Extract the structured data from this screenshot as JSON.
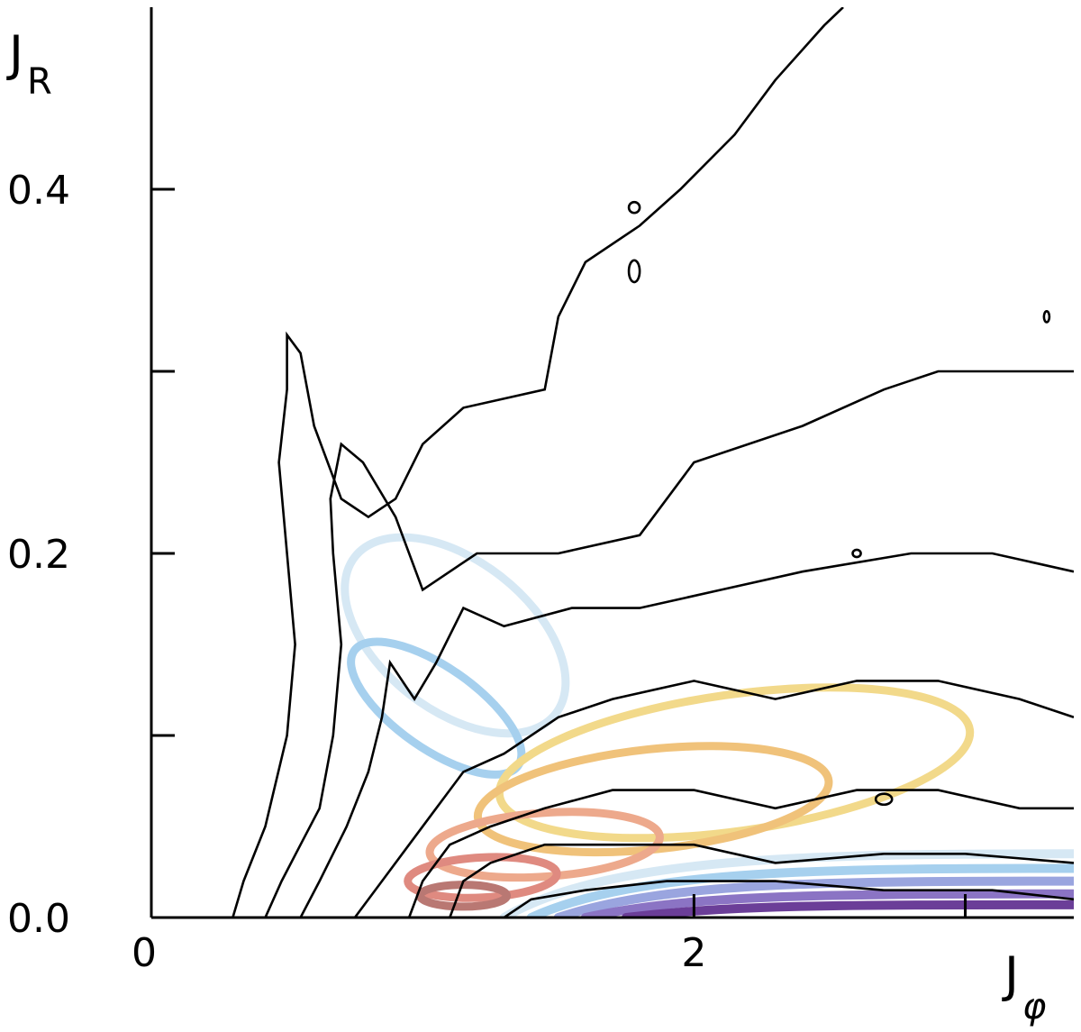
{
  "chart_data": {
    "type": "contour",
    "xlabel": "J",
    "xlabel_sub": "φ",
    "ylabel": "J",
    "ylabel_sub": "R",
    "xlim": [
      0,
      3.4
    ],
    "ylim": [
      0,
      0.5
    ],
    "x_ticks": [
      {
        "value": 0,
        "label": "0"
      },
      {
        "value": 2,
        "label": "2"
      },
      {
        "value": 3,
        "label": ""
      }
    ],
    "y_ticks": [
      {
        "value": 0.0,
        "label": "0.0"
      },
      {
        "value": 0.1,
        "label": ""
      },
      {
        "value": 0.2,
        "label": "0.2"
      },
      {
        "value": 0.3,
        "label": ""
      },
      {
        "value": 0.4,
        "label": "0.4"
      }
    ],
    "black_contours": [
      {
        "name": "contour-level-1",
        "points": [
          [
            0.3,
            0.0
          ],
          [
            0.34,
            0.02
          ],
          [
            0.42,
            0.05
          ],
          [
            0.5,
            0.1
          ],
          [
            0.53,
            0.15
          ],
          [
            0.5,
            0.2
          ],
          [
            0.47,
            0.25
          ],
          [
            0.5,
            0.29
          ],
          [
            0.5,
            0.32
          ],
          [
            0.55,
            0.31
          ],
          [
            0.6,
            0.27
          ],
          [
            0.7,
            0.23
          ],
          [
            0.8,
            0.22
          ],
          [
            0.9,
            0.23
          ],
          [
            1.0,
            0.26
          ],
          [
            1.15,
            0.28
          ],
          [
            1.45,
            0.29
          ],
          [
            1.5,
            0.33
          ],
          [
            1.6,
            0.36
          ],
          [
            1.8,
            0.38
          ],
          [
            1.95,
            0.4
          ],
          [
            2.15,
            0.43
          ],
          [
            2.3,
            0.46
          ],
          [
            2.48,
            0.49
          ],
          [
            2.55,
            0.5
          ]
        ]
      },
      {
        "name": "contour-level-2",
        "points": [
          [
            0.42,
            0.0
          ],
          [
            0.48,
            0.02
          ],
          [
            0.55,
            0.04
          ],
          [
            0.62,
            0.06
          ],
          [
            0.67,
            0.1
          ],
          [
            0.7,
            0.15
          ],
          [
            0.67,
            0.2
          ],
          [
            0.66,
            0.23
          ],
          [
            0.7,
            0.26
          ],
          [
            0.78,
            0.25
          ],
          [
            0.9,
            0.22
          ],
          [
            1.0,
            0.18
          ],
          [
            1.2,
            0.2
          ],
          [
            1.5,
            0.2
          ],
          [
            1.8,
            0.21
          ],
          [
            2.0,
            0.25
          ],
          [
            2.4,
            0.27
          ],
          [
            2.7,
            0.29
          ],
          [
            2.9,
            0.3
          ],
          [
            3.0,
            0.3
          ],
          [
            3.4,
            0.3
          ]
        ]
      },
      {
        "name": "contour-level-3",
        "points": [
          [
            0.55,
            0.0
          ],
          [
            0.62,
            0.02
          ],
          [
            0.72,
            0.05
          ],
          [
            0.8,
            0.08
          ],
          [
            0.85,
            0.11
          ],
          [
            0.88,
            0.14
          ],
          [
            0.97,
            0.12
          ],
          [
            1.05,
            0.14
          ],
          [
            1.15,
            0.17
          ],
          [
            1.3,
            0.16
          ],
          [
            1.55,
            0.17
          ],
          [
            1.8,
            0.17
          ],
          [
            2.1,
            0.18
          ],
          [
            2.4,
            0.19
          ],
          [
            2.8,
            0.2
          ],
          [
            3.1,
            0.2
          ],
          [
            3.4,
            0.19
          ]
        ]
      },
      {
        "name": "contour-level-4",
        "points": [
          [
            0.75,
            0.0
          ],
          [
            0.85,
            0.02
          ],
          [
            0.95,
            0.04
          ],
          [
            1.05,
            0.06
          ],
          [
            1.15,
            0.08
          ],
          [
            1.3,
            0.09
          ],
          [
            1.5,
            0.11
          ],
          [
            1.7,
            0.12
          ],
          [
            2.0,
            0.13
          ],
          [
            2.3,
            0.12
          ],
          [
            2.6,
            0.13
          ],
          [
            2.9,
            0.13
          ],
          [
            3.2,
            0.12
          ],
          [
            3.4,
            0.11
          ]
        ]
      },
      {
        "name": "contour-level-5",
        "points": [
          [
            0.95,
            0.0
          ],
          [
            1.0,
            0.02
          ],
          [
            1.1,
            0.04
          ],
          [
            1.25,
            0.05
          ],
          [
            1.45,
            0.06
          ],
          [
            1.7,
            0.07
          ],
          [
            2.0,
            0.07
          ],
          [
            2.3,
            0.06
          ],
          [
            2.6,
            0.07
          ],
          [
            2.9,
            0.07
          ],
          [
            3.2,
            0.06
          ],
          [
            3.4,
            0.06
          ]
        ]
      },
      {
        "name": "contour-level-6",
        "points": [
          [
            1.1,
            0.0
          ],
          [
            1.15,
            0.02
          ],
          [
            1.25,
            0.03
          ],
          [
            1.45,
            0.04
          ],
          [
            1.7,
            0.04
          ],
          [
            2.0,
            0.04
          ],
          [
            2.3,
            0.03
          ],
          [
            2.7,
            0.035
          ],
          [
            3.0,
            0.035
          ],
          [
            3.4,
            0.03
          ]
        ]
      },
      {
        "name": "contour-level-7",
        "points": [
          [
            1.3,
            0.0
          ],
          [
            1.4,
            0.01
          ],
          [
            1.6,
            0.015
          ],
          [
            1.9,
            0.02
          ],
          [
            2.3,
            0.02
          ],
          [
            2.7,
            0.015
          ],
          [
            3.1,
            0.015
          ],
          [
            3.4,
            0.01
          ]
        ]
      }
    ],
    "black_contour_islands": [
      {
        "name": "contour-island-1",
        "cx": 1.78,
        "cy": 0.39,
        "rx": 0.02,
        "ry": 0.003
      },
      {
        "name": "contour-island-2",
        "cx": 1.78,
        "cy": 0.355,
        "rx": 0.02,
        "ry": 0.006
      },
      {
        "name": "contour-island-3",
        "cx": 3.3,
        "cy": 0.33,
        "rx": 0.01,
        "ry": 0.003
      },
      {
        "name": "contour-island-4",
        "cx": 2.6,
        "cy": 0.2,
        "rx": 0.015,
        "ry": 0.002
      },
      {
        "name": "contour-island-5",
        "cx": 2.7,
        "cy": 0.065,
        "rx": 0.03,
        "ry": 0.003
      }
    ],
    "ellipses": [
      {
        "name": "ellipse-pale-blue",
        "color": "#d6e8f4",
        "cx": 1.12,
        "cy": 0.155,
        "w": 0.55,
        "h": 0.14,
        "angle": 52
      },
      {
        "name": "ellipse-blue",
        "color": "#a6d0ee",
        "cx": 1.05,
        "cy": 0.115,
        "w": 0.3,
        "h": 0.11,
        "angle": 55
      },
      {
        "name": "ellipse-yellow",
        "color": "#f2d98a",
        "cx": 2.15,
        "cy": 0.085,
        "w": 1.75,
        "h": 0.075,
        "angle": 8
      },
      {
        "name": "ellipse-orange",
        "color": "#f0c27a",
        "cx": 1.85,
        "cy": 0.065,
        "w": 1.3,
        "h": 0.055,
        "angle": 6
      },
      {
        "name": "ellipse-salmon",
        "color": "#eda98c",
        "cx": 1.45,
        "cy": 0.04,
        "w": 0.85,
        "h": 0.035,
        "angle": 4
      },
      {
        "name": "ellipse-red",
        "color": "#df8a80",
        "cx": 1.22,
        "cy": 0.022,
        "w": 0.55,
        "h": 0.022,
        "angle": 3
      },
      {
        "name": "ellipse-dark-red",
        "color": "#b97873",
        "cx": 1.15,
        "cy": 0.012,
        "w": 0.32,
        "h": 0.012,
        "angle": 0
      }
    ],
    "flat_ellipses": [
      {
        "name": "flat-pale-blue",
        "color": "#d6e8f4",
        "start": 1.3,
        "level": 0.035
      },
      {
        "name": "flat-blue",
        "color": "#a6d0ee",
        "start": 1.4,
        "level": 0.027
      },
      {
        "name": "flat-periwinkle",
        "color": "#9aa5df",
        "start": 1.5,
        "level": 0.02
      },
      {
        "name": "flat-violet",
        "color": "#8b74c4",
        "start": 1.6,
        "level": 0.013
      },
      {
        "name": "flat-purple",
        "color": "#6b3e98",
        "start": 1.75,
        "level": 0.007
      }
    ]
  }
}
